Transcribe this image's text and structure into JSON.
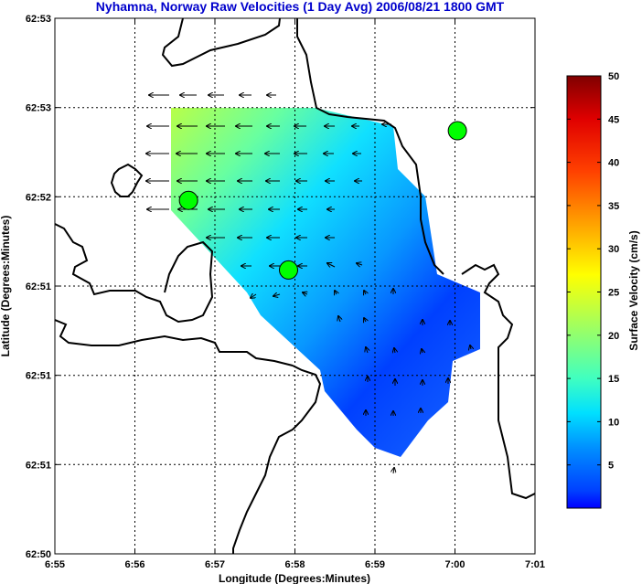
{
  "chart_data": {
    "type": "vector-field",
    "title": "Nyhamna, Norway Raw Velocities (1 Day Avg) 2006/08/21 1800 GMT",
    "xlabel": "Longitude (Degrees:Minutes)",
    "ylabel": "Latitude (Degrees:Minutes)",
    "x_ticks": [
      "6:55",
      "6:56",
      "6:57",
      "6:58",
      "6:59",
      "7:00",
      "7:01"
    ],
    "y_ticks": [
      "62:50",
      "62:51",
      "62:51",
      "62:51",
      "62:52",
      "62:53",
      "62:53"
    ],
    "grid": true,
    "colorbar": {
      "label": "Surface Velocity (cm/s)",
      "ticks": [
        "5",
        "10",
        "15",
        "20",
        "25",
        "30",
        "35",
        "40",
        "45",
        "50"
      ],
      "range": [
        0,
        50
      ],
      "colormap": "jet"
    },
    "stations": [
      {
        "lon_min": 56.67,
        "lat_frac": 0.66,
        "color": "#00ff00"
      },
      {
        "lon_min": 57.92,
        "lat_frac": 0.53,
        "color": "#00ff00"
      },
      {
        "lon_min": 60.03,
        "lat_frac": 0.79,
        "color": "#00ff00"
      }
    ]
  }
}
